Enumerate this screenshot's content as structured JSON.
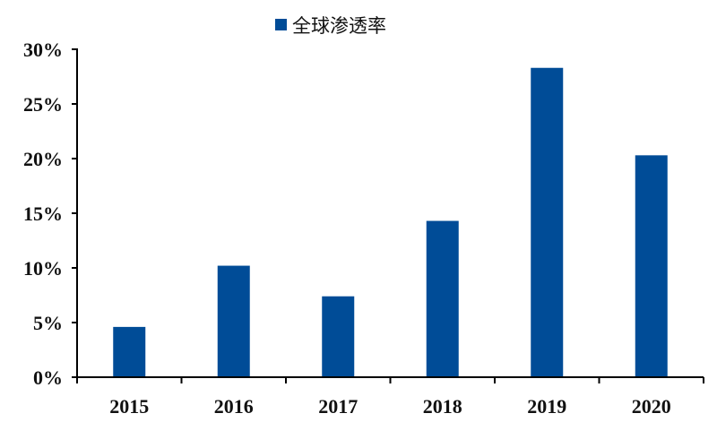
{
  "chart_data": {
    "type": "bar",
    "categories": [
      "2015",
      "2016",
      "2017",
      "2018",
      "2019",
      "2020"
    ],
    "series": [
      {
        "name": "全球渗透率",
        "values": [
          4.6,
          10.2,
          7.4,
          14.3,
          28.3,
          20.3
        ],
        "color": "#004C97"
      }
    ],
    "yticks": [
      "0%",
      "5%",
      "10%",
      "15%",
      "20%",
      "25%",
      "30%"
    ],
    "ylim": [
      0,
      30
    ],
    "yunit": "%",
    "grid": false,
    "legend": "top-center"
  }
}
